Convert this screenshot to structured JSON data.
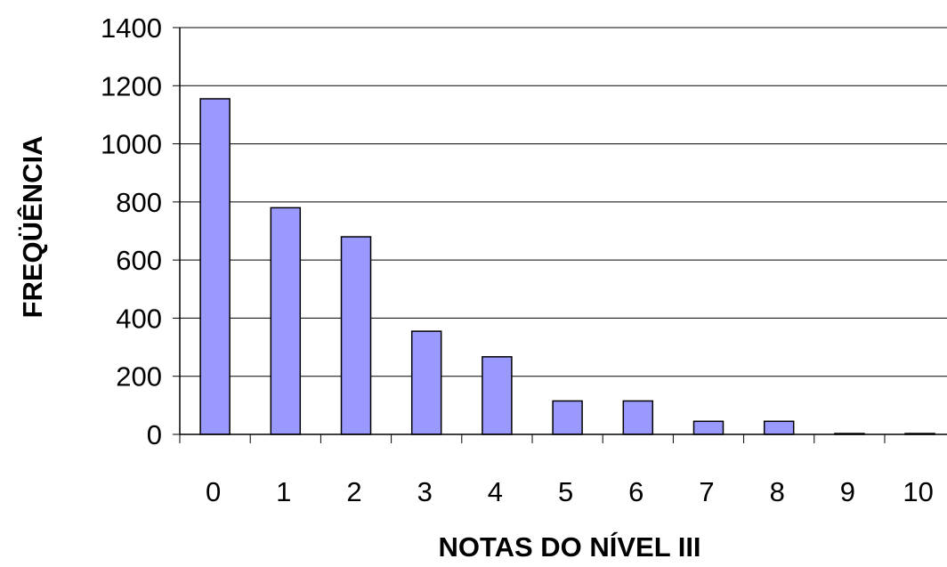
{
  "chart_data": {
    "type": "bar",
    "title": "",
    "xlabel": "NOTAS DO NÍVEL III",
    "ylabel": "FREQÜÊNCIA",
    "categories": [
      "0",
      "1",
      "2",
      "3",
      "4",
      "5",
      "6",
      "7",
      "8",
      "9",
      "10"
    ],
    "values": [
      1155,
      780,
      680,
      355,
      267,
      115,
      115,
      45,
      45,
      3,
      3
    ],
    "ylim": [
      0,
      1400
    ],
    "yticks": [
      0,
      200,
      400,
      600,
      800,
      1000,
      1200,
      1400
    ],
    "grid": "horizontal",
    "bar_color": "#9999ff",
    "bar_edge_color": "#000000"
  }
}
